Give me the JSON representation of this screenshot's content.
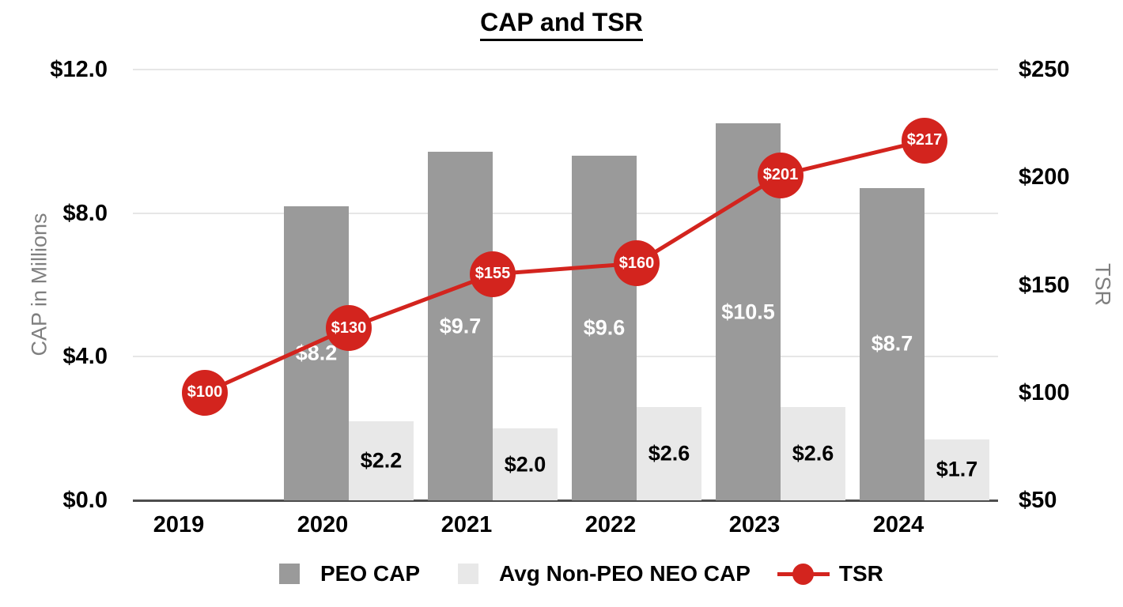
{
  "title": "CAP and TSR",
  "chart_data": {
    "type": "combo-bar-line",
    "title": "CAP and TSR",
    "categories": [
      "2019",
      "2020",
      "2021",
      "2022",
      "2023",
      "2024"
    ],
    "series": [
      {
        "name": "PEO CAP",
        "type": "bar",
        "axis": "left",
        "color": "#9a9a9a",
        "values": [
          null,
          8.2,
          9.7,
          9.6,
          10.5,
          8.7
        ],
        "labels": [
          "",
          "$8.2",
          "$9.7",
          "$9.6",
          "$10.5",
          "$8.7"
        ],
        "label_color": "#ffffff"
      },
      {
        "name": "Avg Non-PEO NEO CAP",
        "type": "bar",
        "axis": "left",
        "color": "#e8e8e8",
        "values": [
          null,
          2.2,
          2.0,
          2.6,
          2.6,
          1.7
        ],
        "labels": [
          "",
          "$2.2",
          "$2.0",
          "$2.6",
          "$2.6",
          "$1.7"
        ],
        "label_color": "#000000"
      },
      {
        "name": "TSR",
        "type": "line",
        "axis": "right",
        "color": "#d3241e",
        "values": [
          100,
          130,
          155,
          160,
          201,
          217
        ],
        "labels": [
          "$100",
          "$130",
          "$155",
          "$160",
          "$201",
          "$217"
        ],
        "label_color": "#ffffff"
      }
    ],
    "left_axis": {
      "title": "CAP in Millions",
      "min": 0,
      "max": 12,
      "tick_values": [
        12,
        8,
        4,
        0
      ],
      "tick_labels": [
        "$12.0",
        "$8.0",
        "$4.0",
        "$0.0"
      ]
    },
    "right_axis": {
      "title": "TSR",
      "min": 50,
      "max": 250,
      "tick_values": [
        250,
        200,
        150,
        100,
        50
      ],
      "tick_labels": [
        "$250",
        "$200",
        "$150",
        "$100",
        "$50"
      ]
    },
    "grid": "horizontal",
    "legend_position": "bottom"
  },
  "colors": {
    "peo_cap_bar": "#9a9a9a",
    "avg_neo_cap_bar": "#e8e8e8",
    "tsr_red": "#d3241e",
    "gridline": "#e6e6e6",
    "axis_line": "#4d4d4d",
    "axis_title_gray": "#7f7f7f",
    "tick_text": "#000000"
  },
  "legend": {
    "items": [
      {
        "swatch_icon": "dark-gray-square"
      },
      {
        "swatch_icon": "light-gray-square"
      },
      {
        "swatch_icon": "red-line-circle-marker"
      }
    ]
  }
}
